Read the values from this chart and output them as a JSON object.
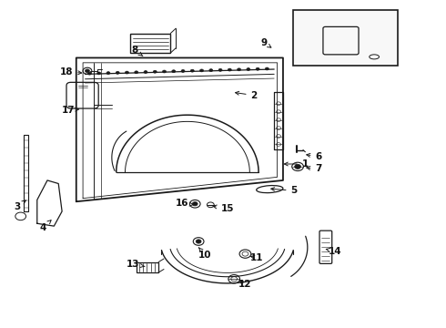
{
  "bg_color": "#ffffff",
  "line_color": "#1a1a1a",
  "text_color": "#111111",
  "figsize": [
    4.9,
    3.6
  ],
  "dpi": 100,
  "labels": [
    {
      "num": "1",
      "pt": [
        0.63,
        0.5
      ],
      "txt": [
        0.685,
        0.5
      ]
    },
    {
      "num": "2",
      "pt": [
        0.52,
        0.72
      ],
      "txt": [
        0.57,
        0.71
      ]
    },
    {
      "num": "3",
      "pt": [
        0.058,
        0.39
      ],
      "txt": [
        0.038,
        0.37
      ]
    },
    {
      "num": "4",
      "pt": [
        0.115,
        0.33
      ],
      "txt": [
        0.095,
        0.305
      ]
    },
    {
      "num": "5",
      "pt": [
        0.6,
        0.425
      ],
      "txt": [
        0.66,
        0.418
      ]
    },
    {
      "num": "6",
      "pt": [
        0.68,
        0.53
      ],
      "txt": [
        0.715,
        0.523
      ]
    },
    {
      "num": "7",
      "pt": [
        0.68,
        0.49
      ],
      "txt": [
        0.715,
        0.485
      ]
    },
    {
      "num": "8",
      "pt": [
        0.32,
        0.83
      ],
      "txt": [
        0.302,
        0.848
      ]
    },
    {
      "num": "9",
      "pt": [
        0.61,
        0.855
      ],
      "txt": [
        0.593,
        0.87
      ]
    },
    {
      "num": "10",
      "pt": [
        0.445,
        0.245
      ],
      "txt": [
        0.46,
        0.222
      ]
    },
    {
      "num": "11",
      "pt": [
        0.555,
        0.22
      ],
      "txt": [
        0.575,
        0.213
      ]
    },
    {
      "num": "12",
      "pt": [
        0.53,
        0.148
      ],
      "txt": [
        0.55,
        0.133
      ]
    },
    {
      "num": "13",
      "pt": [
        0.33,
        0.185
      ],
      "txt": [
        0.298,
        0.193
      ]
    },
    {
      "num": "14",
      "pt": [
        0.73,
        0.24
      ],
      "txt": [
        0.753,
        0.233
      ]
    },
    {
      "num": "15",
      "pt": [
        0.47,
        0.373
      ],
      "txt": [
        0.51,
        0.363
      ]
    },
    {
      "num": "16",
      "pt": [
        0.435,
        0.375
      ],
      "txt": [
        0.408,
        0.38
      ]
    },
    {
      "num": "17",
      "pt": [
        0.178,
        0.668
      ],
      "txt": [
        0.152,
        0.665
      ]
    },
    {
      "num": "18",
      "pt": [
        0.19,
        0.778
      ],
      "txt": [
        0.148,
        0.782
      ]
    }
  ]
}
